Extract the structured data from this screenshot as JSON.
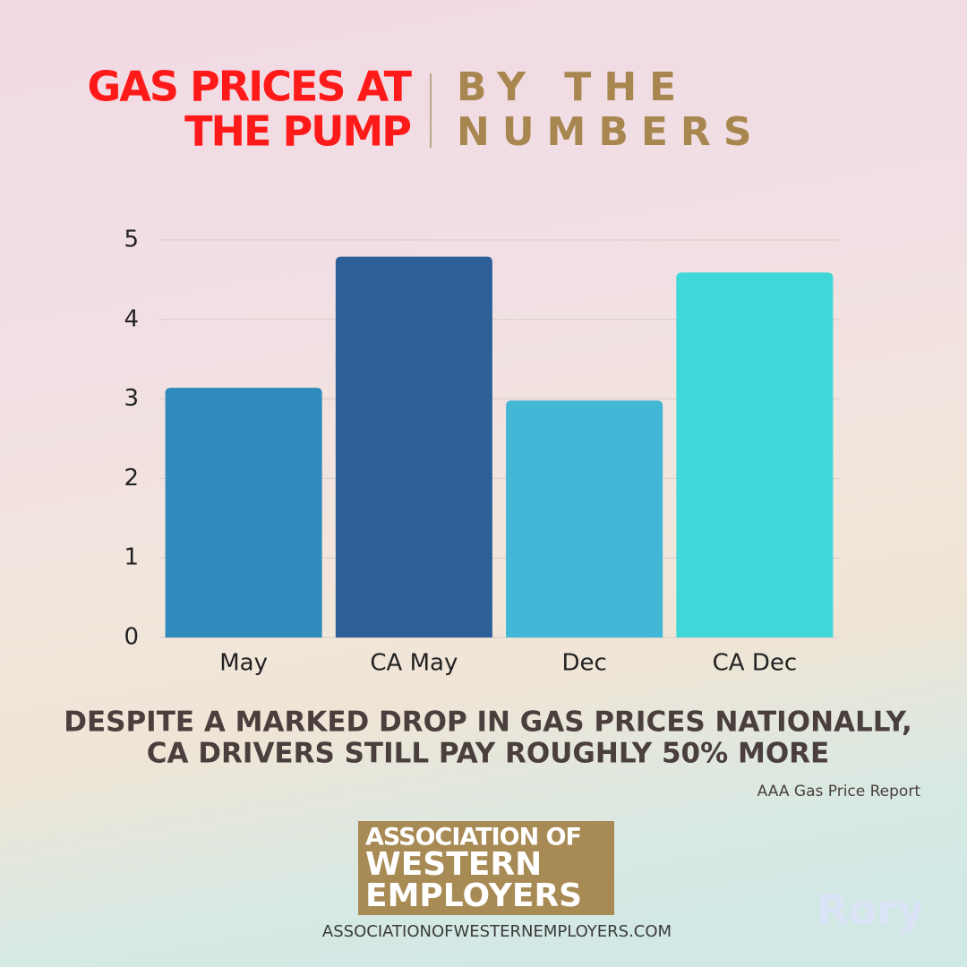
{
  "chart_data": {
    "type": "bar",
    "title": [
      "GAS PRICES AT",
      "THE PUMP"
    ],
    "subtitle": [
      "BY THE",
      "NUMBERS"
    ],
    "categories": [
      "May",
      "CA May",
      "Dec",
      "CA Dec"
    ],
    "values": [
      3.14,
      4.79,
      2.98,
      4.59
    ],
    "colors": [
      "#2e8bbb",
      "#2e6098",
      "#42b7d6",
      "#40d7d8"
    ],
    "ylim": [
      0,
      5
    ],
    "yticks": [
      0,
      1,
      2,
      3,
      4,
      5
    ],
    "grid": true,
    "caption": [
      "DESPITE A MARKED DROP IN GAS PRICES NATIONALLY,",
      "CA DRIVERS STILL PAY ROUGHLY 50% MORE"
    ],
    "source": "AAA Gas Price Report"
  },
  "logo": [
    "ASSOCIATION OF",
    "WESTERN",
    "EMPLOYERS"
  ],
  "website": "ASSOCIATIONOFWESTERNEMPLOYERS.COM",
  "watermark": "Rory"
}
